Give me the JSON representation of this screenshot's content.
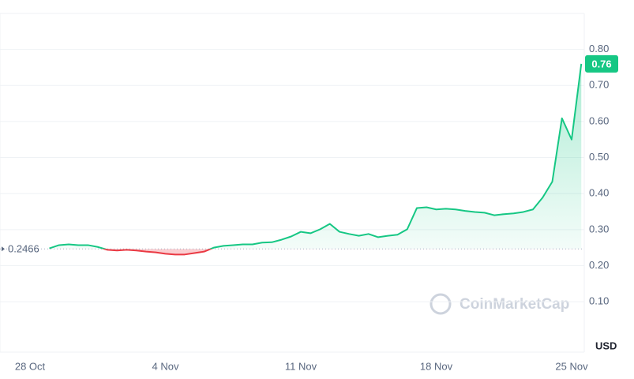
{
  "chart_data": {
    "type": "line",
    "categories": [
      "28 Oct",
      null,
      null,
      null,
      null,
      null,
      null,
      null,
      null,
      null,
      null,
      null,
      null,
      null,
      "4 Nov",
      null,
      null,
      null,
      null,
      null,
      null,
      null,
      null,
      null,
      null,
      null,
      null,
      null,
      "11 Nov",
      null,
      null,
      null,
      null,
      null,
      null,
      null,
      null,
      null,
      null,
      null,
      null,
      null,
      "18 Nov",
      null,
      null,
      null,
      null,
      null,
      null,
      null,
      null,
      null,
      null,
      null,
      null,
      null,
      "25 Nov",
      null
    ],
    "values": [
      null,
      null,
      0.248,
      0.257,
      0.259,
      0.257,
      0.257,
      0.252,
      0.244,
      0.242,
      0.244,
      0.242,
      0.239,
      0.237,
      0.233,
      0.231,
      0.231,
      0.235,
      0.239,
      0.25,
      0.255,
      0.257,
      0.259,
      0.259,
      0.264,
      0.265,
      0.272,
      0.281,
      0.294,
      0.29,
      0.301,
      0.316,
      0.294,
      0.288,
      0.283,
      0.288,
      0.279,
      0.283,
      0.286,
      0.301,
      0.36,
      0.362,
      0.356,
      0.358,
      0.356,
      0.352,
      0.349,
      0.347,
      0.34,
      0.343,
      0.345,
      0.349,
      0.356,
      0.389,
      0.433,
      0.609,
      0.55,
      0.76
    ],
    "up_color": "#16c784",
    "down_color": "#ea3943",
    "baseline": 0.2466,
    "price_label": 0.76,
    "ylim": [
      -0.04,
      0.9
    ],
    "yticks": [
      {
        "value": 0.1,
        "label": "0.10"
      },
      {
        "value": 0.2,
        "label": "0.20"
      },
      {
        "value": 0.3,
        "label": "0.30"
      },
      {
        "value": 0.4,
        "label": "0.40"
      },
      {
        "value": 0.5,
        "label": "0.50"
      },
      {
        "value": 0.6,
        "label": "0.60"
      },
      {
        "value": 0.7,
        "label": "0.70"
      },
      {
        "value": 0.8,
        "label": "0.80"
      }
    ],
    "y_unit": "USD",
    "watermark": "CoinMarketCap",
    "grid": true
  }
}
